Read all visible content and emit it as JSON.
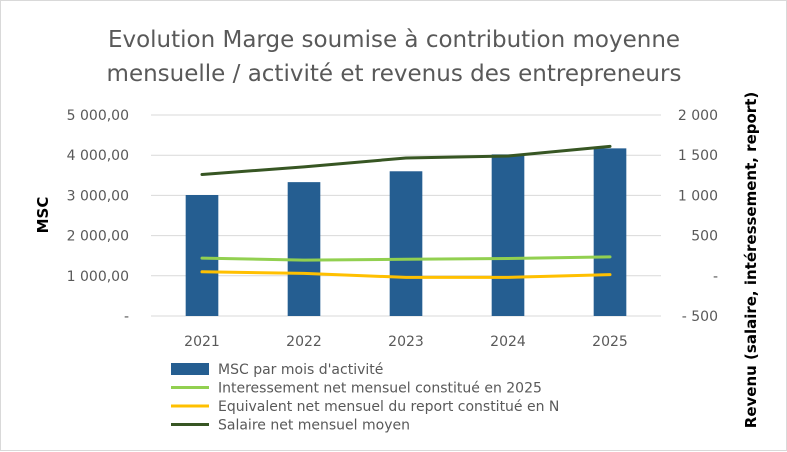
{
  "chart_data": {
    "type": "bar",
    "title": "Evolution Marge soumise à contribution moyenne mensuelle / activité et revenus des entrepreneurs",
    "title_lines": [
      "Evolution Marge soumise à contribution moyenne",
      "mensuelle / activité et revenus des entrepreneurs"
    ],
    "categories": [
      "2021",
      "2022",
      "2023",
      "2024",
      "2025"
    ],
    "ylabel": "MSC",
    "y2label": "Revenu (salaire, intéressement, report)",
    "ylim": [
      0,
      5000
    ],
    "y2lim": [
      -500,
      2000
    ],
    "yticks": [
      "-",
      "1 000,00",
      "2 000,00",
      "3 000,00",
      "4 000,00",
      "5 000,00"
    ],
    "y2ticks": [
      "- 500",
      "-",
      "500",
      "1 000",
      "1 500",
      "2 000"
    ],
    "grid": true,
    "legend_position": "bottom",
    "series": [
      {
        "name": "MSC par mois d'activité",
        "type": "bar",
        "axis": "left",
        "color": "#255E91",
        "values": [
          3010,
          3330,
          3600,
          4020,
          4170
        ]
      },
      {
        "name": "Interessement net mensuel constitué en 2025",
        "type": "line",
        "axis": "right",
        "color": "#92D050",
        "values": [
          220,
          195,
          205,
          215,
          235
        ]
      },
      {
        "name": "Equivalent net mensuel du report constitué en N",
        "type": "line",
        "axis": "right",
        "color": "#FFC000",
        "values": [
          50,
          30,
          -20,
          -20,
          15
        ]
      },
      {
        "name": "Salaire net mensuel moyen",
        "type": "line",
        "axis": "right",
        "color": "#375623",
        "values": [
          1260,
          1355,
          1465,
          1490,
          1610
        ]
      }
    ]
  }
}
